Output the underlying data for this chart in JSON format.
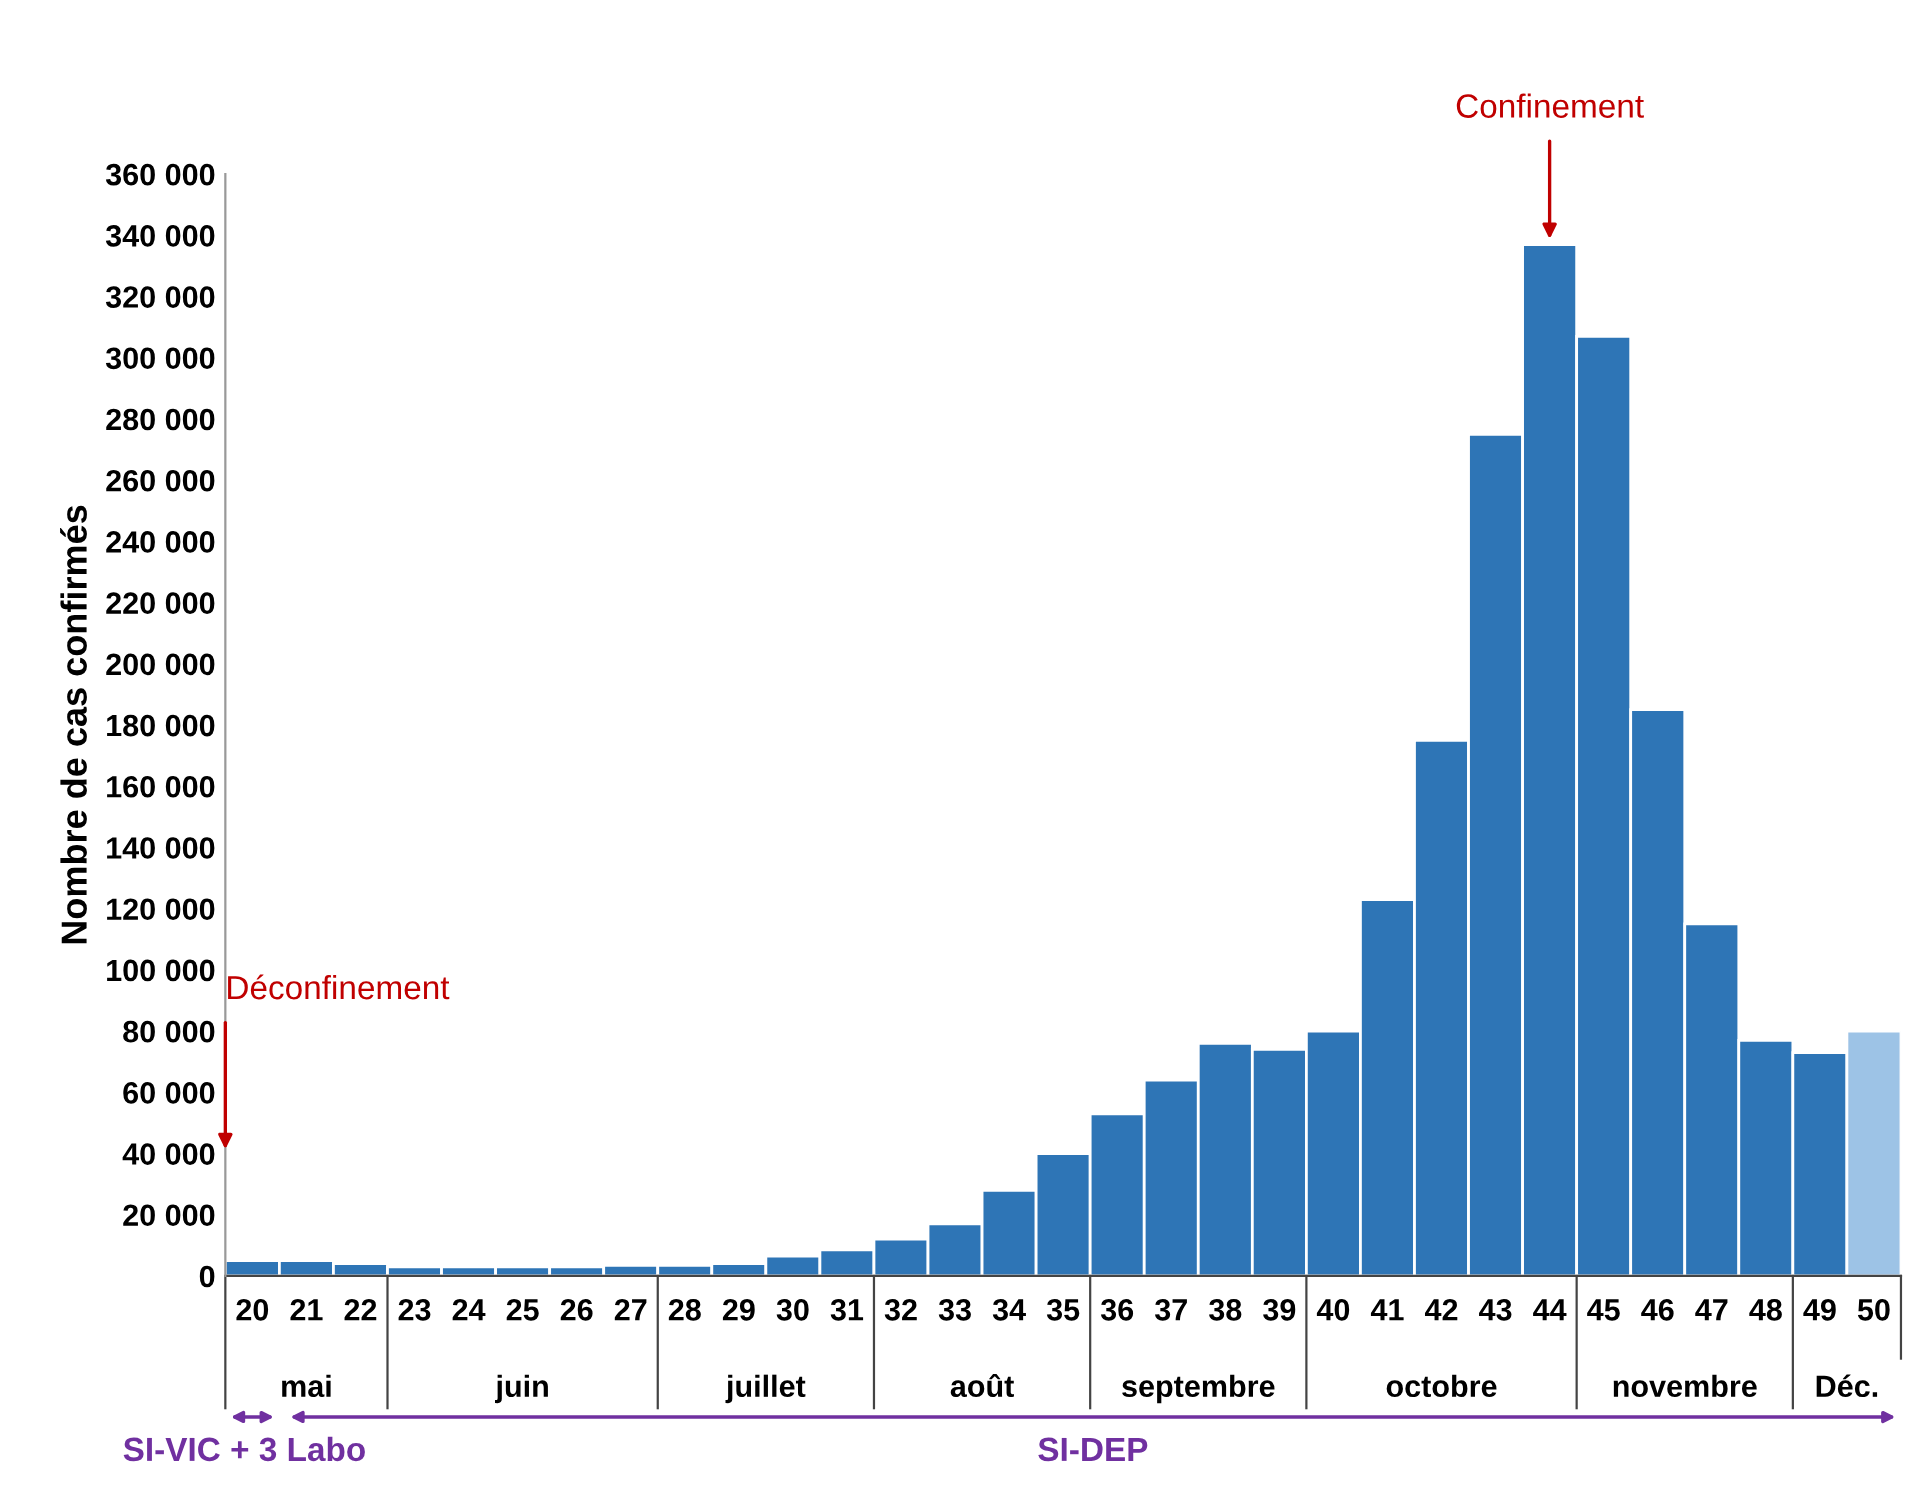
{
  "chart_data": {
    "type": "bar",
    "ylabel": "Nombre de cas confirmés",
    "categories": [
      "20",
      "21",
      "22",
      "23",
      "24",
      "25",
      "26",
      "27",
      "28",
      "29",
      "30",
      "31",
      "32",
      "33",
      "34",
      "35",
      "36",
      "37",
      "38",
      "39",
      "40",
      "41",
      "42",
      "43",
      "44",
      "45",
      "46",
      "47",
      "48",
      "49",
      "50"
    ],
    "values": [
      5000,
      5000,
      4000,
      3000,
      3000,
      3000,
      3000,
      3500,
      3500,
      4000,
      6500,
      8500,
      12000,
      17000,
      28000,
      40000,
      53000,
      64000,
      76000,
      74000,
      80000,
      123000,
      175000,
      275000,
      337000,
      307000,
      185000,
      115000,
      77000,
      73000,
      80000
    ],
    "colors": [
      "#2e75b6",
      "#2e75b6",
      "#2e75b6",
      "#2e75b6",
      "#2e75b6",
      "#2e75b6",
      "#2e75b6",
      "#2e75b6",
      "#2e75b6",
      "#2e75b6",
      "#2e75b6",
      "#2e75b6",
      "#2e75b6",
      "#2e75b6",
      "#2e75b6",
      "#2e75b6",
      "#2e75b6",
      "#2e75b6",
      "#2e75b6",
      "#2e75b6",
      "#2e75b6",
      "#2e75b6",
      "#2e75b6",
      "#2e75b6",
      "#2e75b6",
      "#2e75b6",
      "#2e75b6",
      "#2e75b6",
      "#2e75b6",
      "#2e75b6",
      "#9dc3e6"
    ],
    "ylim": [
      0,
      360000
    ],
    "yticks": [
      {
        "value": 0,
        "label": "0"
      },
      {
        "value": 20000,
        "label": "20 000"
      },
      {
        "value": 40000,
        "label": "40 000"
      },
      {
        "value": 60000,
        "label": "60 000"
      },
      {
        "value": 80000,
        "label": "80 000"
      },
      {
        "value": 100000,
        "label": "100 000"
      },
      {
        "value": 120000,
        "label": "120 000"
      },
      {
        "value": 140000,
        "label": "140 000"
      },
      {
        "value": 160000,
        "label": "160 000"
      },
      {
        "value": 180000,
        "label": "180 000"
      },
      {
        "value": 200000,
        "label": "200 000"
      },
      {
        "value": 220000,
        "label": "220 000"
      },
      {
        "value": 240000,
        "label": "240 000"
      },
      {
        "value": 260000,
        "label": "260 000"
      },
      {
        "value": 280000,
        "label": "280 000"
      },
      {
        "value": 300000,
        "label": "300 000"
      },
      {
        "value": 320000,
        "label": "320 000"
      },
      {
        "value": 340000,
        "label": "340 000"
      },
      {
        "value": 360000,
        "label": "360 000"
      }
    ],
    "grid": false,
    "annotations": [
      "Déconfinement",
      "Confinement",
      "mai",
      "juin",
      "juillet",
      "août",
      "septembre",
      "octobre",
      "novembre",
      "Déc.",
      "SI-VIC + 3 Labo",
      "SI-DEP"
    ]
  }
}
